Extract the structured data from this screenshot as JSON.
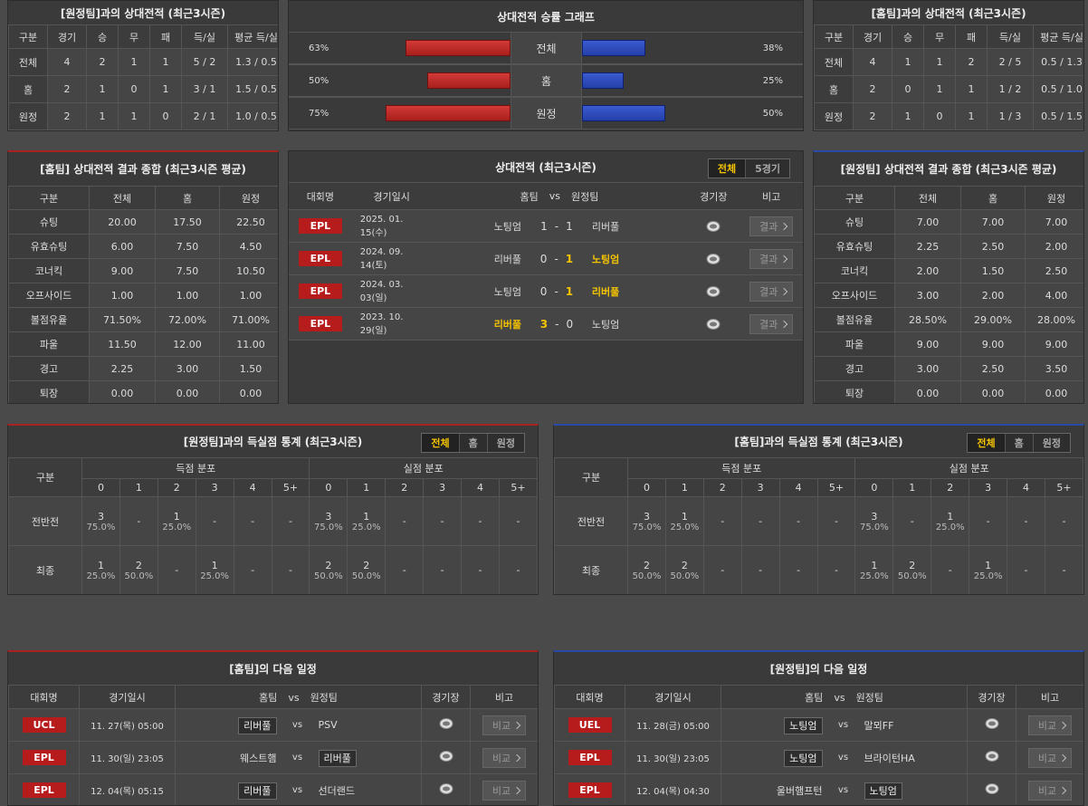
{
  "h2h_vs_away": {
    "title": "[원정팀]과의 상대전적 (최근3시즌)",
    "headers": [
      "구분",
      "경기",
      "승",
      "무",
      "패",
      "득/실",
      "평균 득/실"
    ],
    "rows": [
      [
        "전체",
        4,
        2,
        1,
        1,
        "5 / 2",
        "1.3 / 0.5"
      ],
      [
        "홈",
        2,
        1,
        0,
        1,
        "3 / 1",
        "1.5 / 0.5"
      ],
      [
        "원정",
        2,
        1,
        1,
        0,
        "2 / 1",
        "1.0 / 0.5"
      ]
    ]
  },
  "winrate": {
    "title": "상대전적 승률 그래프",
    "rows": [
      {
        "label": "전체",
        "home": {
          "value": 63,
          "label": "63%"
        },
        "away": {
          "value": 38,
          "label": "38%"
        }
      },
      {
        "label": "홈",
        "home": {
          "value": 50,
          "label": "50%"
        },
        "away": {
          "value": 25,
          "label": "25%"
        }
      },
      {
        "label": "원정",
        "home": {
          "value": 75,
          "label": "75%"
        },
        "away": {
          "value": 50,
          "label": "50%"
        }
      }
    ]
  },
  "h2h_vs_home": {
    "title": "[홈팀]과의 상대전적 (최근3시즌)",
    "headers": [
      "구분",
      "경기",
      "승",
      "무",
      "패",
      "득/실",
      "평균 득/실"
    ],
    "rows": [
      [
        "전체",
        4,
        1,
        1,
        2,
        "2 / 5",
        "0.5 / 1.3"
      ],
      [
        "홈",
        2,
        0,
        1,
        1,
        "1 / 2",
        "0.5 / 1.0"
      ],
      [
        "원정",
        2,
        1,
        0,
        1,
        "1 / 3",
        "0.5 / 1.5"
      ]
    ]
  },
  "home_summary": {
    "title": "[홈팀] 상대전적 결과 종합 (최근3시즌 평균)",
    "headers": [
      "구분",
      "전체",
      "홈",
      "원정"
    ],
    "rows": [
      [
        "슈팅",
        "20.00",
        "17.50",
        "22.50"
      ],
      [
        "유효슈팅",
        "6.00",
        "7.50",
        "4.50"
      ],
      [
        "코너킥",
        "9.00",
        "7.50",
        "10.50"
      ],
      [
        "오프사이드",
        "1.00",
        "1.00",
        "1.00"
      ],
      [
        "볼점유율",
        "71.50%",
        "72.00%",
        "71.00%"
      ],
      [
        "파울",
        "11.50",
        "12.00",
        "11.00"
      ],
      [
        "경고",
        "2.25",
        "3.00",
        "1.50"
      ],
      [
        "퇴장",
        "0.00",
        "0.00",
        "0.00"
      ]
    ]
  },
  "h2h_matches": {
    "title": "상대전적 (최근3시즌)",
    "tabs": [
      "전체",
      "5경기"
    ],
    "headers": [
      "대회명",
      "경기일시",
      "홈팀",
      "vs",
      "원정팀",
      "경기장",
      "비고"
    ],
    "score_separator": "-",
    "button": "결과",
    "rows": [
      {
        "league": "EPL",
        "date": "2025. 01. 15(수)",
        "home": "노팅엄",
        "home_score": 1,
        "away_score": 1,
        "away": "리버풀"
      },
      {
        "league": "EPL",
        "date": "2024. 09. 14(토)",
        "home": "리버풀",
        "home_score": 0,
        "away_score": 1,
        "away": "노팅엄"
      },
      {
        "league": "EPL",
        "date": "2024. 03. 03(일)",
        "home": "노팅엄",
        "home_score": 0,
        "away_score": 1,
        "away": "리버풀"
      },
      {
        "league": "EPL",
        "date": "2023. 10. 29(일)",
        "home": "리버풀",
        "home_score": 3,
        "away_score": 0,
        "away": "노팅엄"
      }
    ]
  },
  "away_summary": {
    "title": "[원정팀] 상대전적 결과 종합 (최근3시즌 평균)",
    "headers": [
      "구분",
      "전체",
      "홈",
      "원정"
    ],
    "rows": [
      [
        "슈팅",
        "7.00",
        "7.00",
        "7.00"
      ],
      [
        "유효슈팅",
        "2.25",
        "2.50",
        "2.00"
      ],
      [
        "코너킥",
        "2.00",
        "1.50",
        "2.50"
      ],
      [
        "오프사이드",
        "3.00",
        "2.00",
        "4.00"
      ],
      [
        "볼점유율",
        "28.50%",
        "29.00%",
        "28.00%"
      ],
      [
        "파울",
        "9.00",
        "9.00",
        "9.00"
      ],
      [
        "경고",
        "3.00",
        "2.50",
        "3.50"
      ],
      [
        "퇴장",
        "0.00",
        "0.00",
        "0.00"
      ]
    ]
  },
  "goals_vs_away": {
    "title": "[원정팀]과의 득실점 통계 (최근3시즌)",
    "tabs": [
      "전체",
      "홈",
      "원정"
    ],
    "headers": {
      "label": "구분",
      "scored": "득점 분포",
      "conceded": "실점 분포",
      "bins": [
        "0",
        "1",
        "2",
        "3",
        "4",
        "5+"
      ]
    },
    "empty": "-",
    "rows": [
      {
        "label": "전반전",
        "scored": [
          {
            "count": 3,
            "pct": "75.0%"
          },
          null,
          {
            "count": 1,
            "pct": "25.0%"
          },
          null,
          null,
          null
        ],
        "conceded": [
          {
            "count": 3,
            "pct": "75.0%"
          },
          {
            "count": 1,
            "pct": "25.0%"
          },
          null,
          null,
          null,
          null
        ]
      },
      {
        "label": "최종",
        "scored": [
          {
            "count": 1,
            "pct": "25.0%"
          },
          {
            "count": 2,
            "pct": "50.0%"
          },
          null,
          {
            "count": 1,
            "pct": "25.0%"
          },
          null,
          null
        ],
        "conceded": [
          {
            "count": 2,
            "pct": "50.0%"
          },
          {
            "count": 2,
            "pct": "50.0%"
          },
          null,
          null,
          null,
          null
        ]
      }
    ]
  },
  "goals_vs_home": {
    "title": "[홈팀]과의 득실점 통계 (최근3시즌)",
    "tabs": [
      "전체",
      "홈",
      "원정"
    ],
    "headers": {
      "label": "구분",
      "scored": "득점 분포",
      "conceded": "실점 분포",
      "bins": [
        "0",
        "1",
        "2",
        "3",
        "4",
        "5+"
      ]
    },
    "empty": "-",
    "rows": [
      {
        "label": "전반전",
        "scored": [
          {
            "count": 3,
            "pct": "75.0%"
          },
          {
            "count": 1,
            "pct": "25.0%"
          },
          null,
          null,
          null,
          null
        ],
        "conceded": [
          {
            "count": 3,
            "pct": "75.0%"
          },
          null,
          {
            "count": 1,
            "pct": "25.0%"
          },
          null,
          null,
          null
        ]
      },
      {
        "label": "최종",
        "scored": [
          {
            "count": 2,
            "pct": "50.0%"
          },
          {
            "count": 2,
            "pct": "50.0%"
          },
          null,
          null,
          null,
          null
        ],
        "conceded": [
          {
            "count": 1,
            "pct": "25.0%"
          },
          {
            "count": 2,
            "pct": "50.0%"
          },
          null,
          {
            "count": 1,
            "pct": "25.0%"
          },
          null,
          null
        ]
      }
    ]
  },
  "home_schedule": {
    "title": "[홈팀]의 다음 일정",
    "headers": [
      "대회명",
      "경기일시",
      "홈팀",
      "vs",
      "원정팀",
      "경기장",
      "비고"
    ],
    "vs": "vs",
    "button": "비교",
    "rows": [
      {
        "league": "UCL",
        "datetime": "11. 27(목) 05:00",
        "home": "리버풀",
        "away": "PSV",
        "focus": "home"
      },
      {
        "league": "EPL",
        "datetime": "11. 30(일) 23:05",
        "home": "웨스트햄",
        "away": "리버풀",
        "focus": "away"
      },
      {
        "league": "EPL",
        "datetime": "12. 04(목) 05:15",
        "home": "리버풀",
        "away": "선더랜드",
        "focus": "home"
      }
    ]
  },
  "away_schedule": {
    "title": "[원정팀]의 다음 일정",
    "headers": [
      "대회명",
      "경기일시",
      "홈팀",
      "vs",
      "원정팀",
      "경기장",
      "비고"
    ],
    "vs": "vs",
    "button": "비교",
    "rows": [
      {
        "league": "UEL",
        "datetime": "11. 28(금) 05:00",
        "home": "노팅엄",
        "away": "말뫼FF",
        "focus": "home"
      },
      {
        "league": "EPL",
        "datetime": "11. 30(일) 23:05",
        "home": "노팅엄",
        "away": "브라이턴HA",
        "focus": "home"
      },
      {
        "league": "EPL",
        "datetime": "12. 04(목) 04:30",
        "home": "울버햄프턴",
        "away": "노팅엄",
        "focus": "away"
      }
    ]
  }
}
